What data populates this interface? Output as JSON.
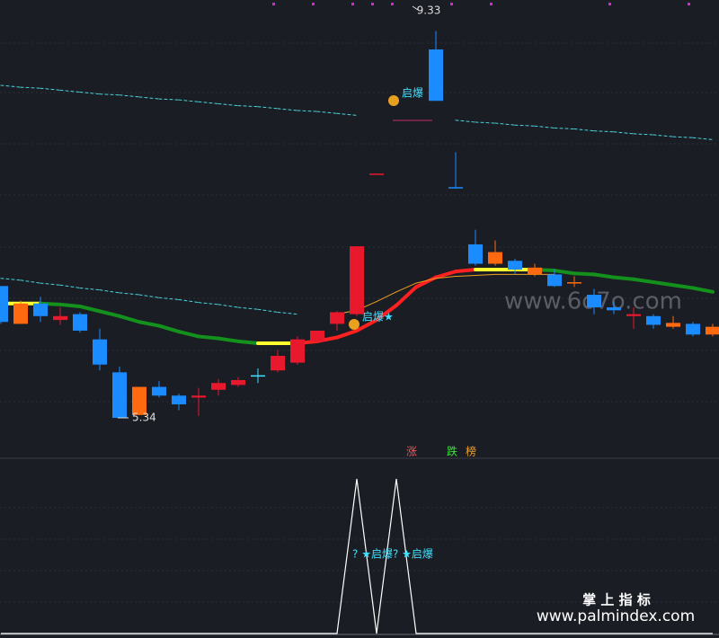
{
  "chart_data": [
    {
      "type": "candlestick",
      "ylim": [
        4.97,
        9.65
      ],
      "candles": {
        "open": [
          6.7,
          6.52,
          6.52,
          6.35,
          6.41,
          6.15,
          5.81,
          5.66,
          5.66,
          5.57,
          5.55,
          5.63,
          5.68,
          5.78,
          5.83,
          5.91,
          6.13,
          6.31,
          6.41,
          7.85,
          null,
          null,
          9.14,
          7.72,
          7.13,
          7.05,
          6.96,
          6.89,
          6.82,
          6.74,
          6.61,
          6.48,
          6.39,
          6.39,
          6.32,
          6.31,
          6.28
        ],
        "high": [
          6.7,
          6.55,
          6.59,
          6.48,
          6.43,
          6.26,
          5.87,
          5.66,
          5.72,
          5.59,
          5.65,
          5.74,
          5.76,
          5.85,
          6.04,
          6.18,
          6.24,
          6.44,
          7.11,
          7.86,
          null,
          null,
          9.33,
          8.08,
          7.28,
          7.17,
          6.98,
          6.93,
          6.87,
          6.8,
          6.67,
          6.54,
          6.48,
          6.41,
          6.39,
          6.33,
          6.31
        ],
        "low": [
          6.31,
          6.31,
          6.33,
          6.3,
          6.22,
          5.83,
          5.34,
          5.37,
          5.55,
          5.42,
          5.36,
          5.57,
          5.66,
          5.7,
          5.81,
          5.89,
          6.11,
          6.24,
          6.39,
          7.85,
          null,
          null,
          8.61,
          7.71,
          6.91,
          6.91,
          6.82,
          6.8,
          6.69,
          6.69,
          6.41,
          6.41,
          6.26,
          6.26,
          6.26,
          6.18,
          6.18
        ],
        "close": [
          6.33,
          6.31,
          6.39,
          6.39,
          6.24,
          5.89,
          5.34,
          5.37,
          5.57,
          5.48,
          5.57,
          5.7,
          5.73,
          5.78,
          5.98,
          6.15,
          6.24,
          6.43,
          7.11,
          7.86,
          null,
          null,
          8.61,
          7.71,
          6.93,
          6.93,
          6.87,
          6.82,
          6.7,
          6.73,
          6.48,
          6.45,
          6.41,
          6.3,
          6.28,
          6.2,
          6.2
        ],
        "colors": [
          "#1a8cff",
          "#ff6a10",
          "#1a8cff",
          "#e8192c",
          "#1a8cff",
          "#1a8cff",
          "#1a8cff",
          "#ff6a10",
          "#1a8cff",
          "#1a8cff",
          "#e8192c",
          "#e8192c",
          "#e8192c",
          "#40e0ff",
          "#e8192c",
          "#e8192c",
          "#e8192c",
          "#e8192c",
          "#e8192c",
          "#e8192c",
          null,
          null,
          "#1a8cff",
          "#1a8cff",
          "#1a8cff",
          "#ff6a10",
          "#1a8cff",
          "#ff6a10",
          "#1a8cff",
          "#ff6a10",
          "#1a8cff",
          "#1a8cff",
          "#e8192c",
          "#1a8cff",
          "#ff6a10",
          "#1a8cff",
          "#ff6a10"
        ]
      },
      "lines": [
        {
          "colors": {
            "rising": "#ff2020",
            "falling": "#14901c",
            "flat": "#ffff30"
          },
          "width": 4,
          "values": [
            6.52,
            6.52,
            6.52,
            6.51,
            6.49,
            6.44,
            6.39,
            6.33,
            6.29,
            6.23,
            6.18,
            6.16,
            6.13,
            6.11,
            6.11,
            6.11,
            6.13,
            6.17,
            6.24,
            6.35,
            6.5,
            6.69,
            6.79,
            6.85,
            6.87,
            6.87,
            6.87,
            6.87,
            6.86,
            6.83,
            6.82,
            6.79,
            6.77,
            6.74,
            6.71,
            6.68,
            6.64
          ]
        },
        {
          "color": "#40d8e0",
          "width": 1,
          "dashed": true,
          "values": [
            8.77,
            8.75,
            8.74,
            8.72,
            8.7,
            8.68,
            8.67,
            8.65,
            8.63,
            8.62,
            8.6,
            8.58,
            8.56,
            8.55,
            8.53,
            8.51,
            8.5,
            8.48,
            8.46,
            null,
            null,
            null,
            null,
            8.41,
            8.39,
            8.38,
            8.36,
            8.35,
            8.33,
            8.32,
            8.3,
            8.29,
            8.27,
            8.26,
            8.24,
            8.23,
            8.21
          ]
        },
        {
          "color": "#40d8e0",
          "width": 1,
          "dashed": true,
          "values": [
            6.78,
            6.76,
            6.73,
            6.71,
            6.68,
            6.66,
            6.63,
            6.61,
            6.58,
            6.56,
            6.53,
            6.51,
            6.48,
            6.46,
            6.43,
            6.41,
            null,
            null,
            null,
            null,
            null,
            null,
            null,
            null,
            null,
            null,
            null,
            null,
            null,
            null,
            null,
            null,
            null,
            null,
            null,
            null,
            null
          ]
        },
        {
          "color": "#f0a020",
          "width": 1,
          "dashed": false,
          "values": [
            null,
            null,
            null,
            null,
            null,
            null,
            null,
            null,
            null,
            null,
            null,
            null,
            null,
            null,
            null,
            null,
            null,
            6.41,
            6.45,
            6.54,
            6.64,
            6.73,
            6.78,
            6.8,
            6.81,
            6.82,
            6.82,
            6.82,
            6.82,
            null,
            null,
            null,
            null,
            null,
            null,
            null,
            null
          ]
        }
      ],
      "annotations": [
        "启爆",
        "启爆★"
      ]
    },
    {
      "type": "signal",
      "ylim": [
        0,
        1
      ],
      "color": "#ffffff",
      "label": "? ★启爆? ★启爆",
      "values": [
        0,
        0,
        0,
        0,
        0,
        0,
        0,
        0,
        0,
        0,
        0,
        0,
        0,
        0,
        0,
        0,
        0,
        0,
        1,
        0,
        1,
        0,
        0,
        0,
        0,
        0,
        0,
        0,
        0,
        0,
        0,
        0,
        0,
        0,
        0,
        0,
        0
      ]
    }
  ],
  "toolbar": [
    "涨",
    "跌",
    "榜"
  ],
  "watermarks": [
    "www.6o7o.com",
    "掌 上 指 标",
    "www.palmindex.com"
  ]
}
